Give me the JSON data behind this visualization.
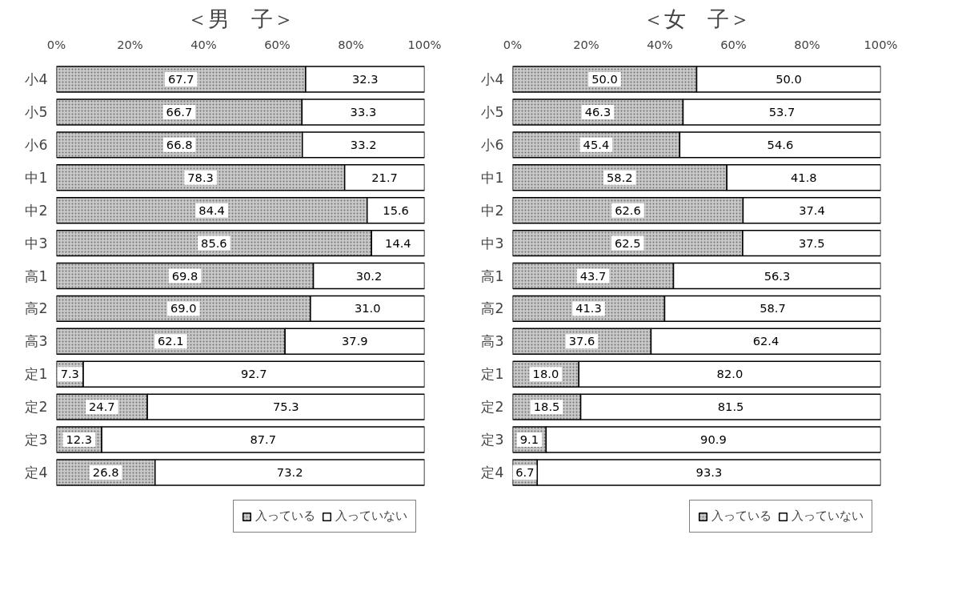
{
  "chart_data": [
    {
      "type": "bar",
      "title": "＜男　子＞",
      "orientation": "horizontal",
      "stacked": true,
      "grid": false,
      "legend": "bottom",
      "categories": [
        "小4",
        "小5",
        "小6",
        "中1",
        "中2",
        "中3",
        "高1",
        "高2",
        "高3",
        "定1",
        "定2",
        "定3",
        "定4"
      ],
      "xlim": [
        0,
        100
      ],
      "xticks": [
        {
          "value": 0,
          "label": "0%"
        },
        {
          "value": 20,
          "label": "20%"
        },
        {
          "value": 40,
          "label": "40%"
        },
        {
          "value": 60,
          "label": "60%"
        },
        {
          "value": 80,
          "label": "80%"
        },
        {
          "value": 100,
          "label": "100%"
        }
      ],
      "series": [
        {
          "name": "入っている",
          "color": "#c8c8c8",
          "values": [
            67.7,
            66.7,
            66.8,
            78.3,
            84.4,
            85.6,
            69.8,
            69.0,
            62.1,
            7.3,
            24.7,
            12.3,
            26.8
          ],
          "value_labels": [
            "67.7",
            "66.7",
            "66.8",
            "78.3",
            "84.4",
            "85.6",
            "69.8",
            "69.0",
            "62.1",
            "7.3",
            "24.7",
            "12.3",
            "26.8"
          ]
        },
        {
          "name": "入っていない",
          "color": "#ffffff",
          "values": [
            32.3,
            33.3,
            33.2,
            21.7,
            15.6,
            14.4,
            30.2,
            31.0,
            37.9,
            92.7,
            75.3,
            87.7,
            73.2
          ],
          "value_labels": [
            "32.3",
            "33.3",
            "33.2",
            "21.7",
            "15.6",
            "14.4",
            "30.2",
            "31.0",
            "37.9",
            "92.7",
            "75.3",
            "87.7",
            "73.2"
          ]
        }
      ]
    },
    {
      "type": "bar",
      "title": "＜女　子＞",
      "orientation": "horizontal",
      "stacked": true,
      "grid": false,
      "legend": "bottom",
      "categories": [
        "小4",
        "小5",
        "小6",
        "中1",
        "中2",
        "中3",
        "高1",
        "高2",
        "高3",
        "定1",
        "定2",
        "定3",
        "定4"
      ],
      "xlim": [
        0,
        100
      ],
      "xticks": [
        {
          "value": 0,
          "label": "0%"
        },
        {
          "value": 20,
          "label": "20%"
        },
        {
          "value": 40,
          "label": "40%"
        },
        {
          "value": 60,
          "label": "60%"
        },
        {
          "value": 80,
          "label": "80%"
        },
        {
          "value": 100,
          "label": "100%"
        }
      ],
      "series": [
        {
          "name": "入っている",
          "color": "#c8c8c8",
          "values": [
            50.0,
            46.3,
            45.4,
            58.2,
            62.6,
            62.5,
            43.7,
            41.3,
            37.6,
            18.0,
            18.5,
            9.1,
            6.7
          ],
          "value_labels": [
            "50.0",
            "46.3",
            "45.4",
            "58.2",
            "62.6",
            "62.5",
            "43.7",
            "41.3",
            "37.6",
            "18.0",
            "18.5",
            "9.1",
            "6.7"
          ]
        },
        {
          "name": "入っていない",
          "color": "#ffffff",
          "values": [
            50.0,
            53.7,
            54.6,
            41.8,
            37.4,
            37.5,
            56.3,
            58.7,
            62.4,
            82.0,
            81.5,
            90.9,
            93.3
          ],
          "value_labels": [
            "50.0",
            "53.7",
            "54.6",
            "41.8",
            "37.4",
            "37.5",
            "56.3",
            "58.7",
            "62.4",
            "82.0",
            "81.5",
            "90.9",
            "93.3"
          ]
        }
      ]
    }
  ]
}
